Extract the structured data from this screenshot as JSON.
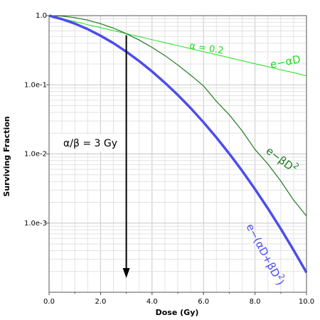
{
  "chart_data": {
    "type": "line",
    "title": "",
    "xlabel": "Dose (Gy)",
    "ylabel": "Surviving Fraction",
    "xlim": [
      0,
      10
    ],
    "ylim": [
      0.0001,
      1.0
    ],
    "yscale": "log",
    "grid": true,
    "x_ticks": [
      0,
      2,
      4,
      6,
      8,
      10
    ],
    "x_tick_labels": [
      "0.0",
      "2.0",
      "4.0",
      "6.0",
      "8.0",
      "10.0"
    ],
    "y_ticks": [
      1.0,
      0.1,
      0.01,
      0.001
    ],
    "y_tick_labels": [
      "1.0",
      "1.0e-1",
      "1.0e-2",
      "1.0e-3"
    ],
    "x": [
      0,
      0.5,
      1,
      1.5,
      2,
      2.5,
      3,
      3.5,
      4,
      4.5,
      5,
      5.5,
      6,
      6.5,
      7,
      7.5,
      8,
      8.5,
      9,
      9.5,
      10
    ],
    "series": [
      {
        "name": "e−αD",
        "color": "#22dd22",
        "values": [
          1.0,
          0.905,
          0.819,
          0.741,
          0.67,
          0.607,
          0.549,
          0.497,
          0.449,
          0.407,
          0.368,
          0.333,
          0.301,
          0.273,
          0.247,
          0.223,
          0.202,
          0.183,
          0.165,
          0.15,
          0.135
        ]
      },
      {
        "name": "e−βD²",
        "color": "#1e7a1e",
        "values": [
          1.0,
          0.983,
          0.936,
          0.861,
          0.765,
          0.659,
          0.549,
          0.444,
          0.348,
          0.264,
          0.194,
          0.138,
          0.0963,
          0.0576,
          0.0369,
          0.0216,
          0.0116,
          0.00716,
          0.00407,
          0.00215,
          0.00127
        ]
      },
      {
        "name": "e−(αD+βD²)",
        "color": "#4d4dee",
        "values": [
          1.0,
          0.89,
          0.767,
          0.638,
          0.513,
          0.4,
          0.301,
          0.22,
          0.156,
          0.107,
          0.0714,
          0.046,
          0.0287,
          0.0173,
          0.0101,
          0.0057,
          0.0031,
          0.00163,
          0.000828,
          0.000406,
          0.000193
        ]
      }
    ],
    "annotations": {
      "alpha_value": "α = 0.2",
      "ratio": "α/β = 3 Gy",
      "ratio_dose": 3,
      "label_linear": "e−αD",
      "label_quadratic": "e−βD",
      "label_quadratic_sup": "2",
      "label_combined": "e−(αD+βD",
      "label_combined_sup": "2",
      "label_combined_close": ")"
    }
  }
}
